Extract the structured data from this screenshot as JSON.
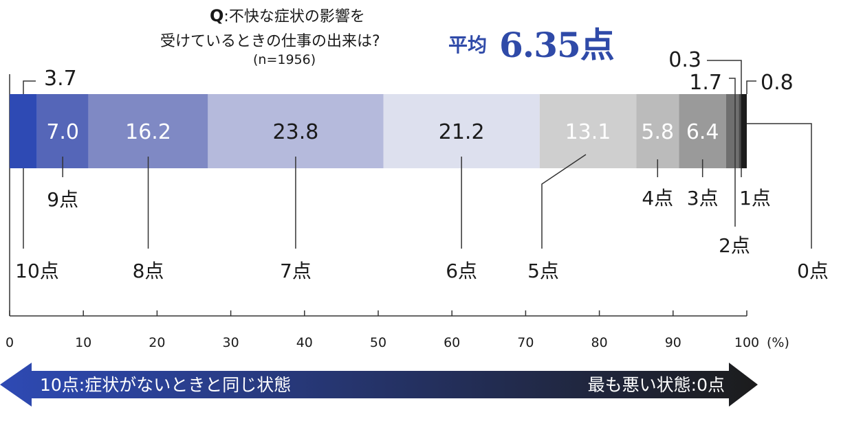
{
  "question": {
    "prefix": "Q",
    "line1": ":不快な症状の影響を",
    "line2": "受けているときの仕事の出来は?",
    "sample": "(n=1956)"
  },
  "average": {
    "label": "平均",
    "value": "6.35点"
  },
  "chart_data": {
    "type": "stacked-bar-100",
    "categories": [
      "10点",
      "9点",
      "8点",
      "7点",
      "6点",
      "5点",
      "4点",
      "3点",
      "2点",
      "1点",
      "0点"
    ],
    "values": [
      3.7,
      7.0,
      16.2,
      23.8,
      21.2,
      13.1,
      5.8,
      6.4,
      1.7,
      0.3,
      0.8
    ],
    "value_labels": [
      "3.7",
      "7.0",
      "16.2",
      "23.8",
      "21.2",
      "13.1",
      "5.8",
      "6.4",
      "1.7",
      "0.3",
      "0.8"
    ],
    "colors": [
      "#2e4ab4",
      "#5566b8",
      "#7f89c4",
      "#b5badc",
      "#dde0ee",
      "#cfcfcf",
      "#bbbbbb",
      "#9a9a9a",
      "#6f6f6f",
      "#4a4a4a",
      "#1c1c1c"
    ],
    "label_colors": [
      "#1a1a1a",
      "#ffffff",
      "#ffffff",
      "#1a1a1a",
      "#1a1a1a",
      "#ffffff",
      "#ffffff",
      "#ffffff",
      "#1a1a1a",
      "#1a1a1a",
      "#1a1a1a"
    ],
    "xlim": [
      0,
      100
    ],
    "xticks": [
      "0",
      "10",
      "20",
      "30",
      "40",
      "50",
      "60",
      "70",
      "80",
      "90",
      "100"
    ],
    "xunit": "(%)"
  },
  "arrow": {
    "left_label": "10点:症状がないときと同じ状態",
    "right_label": "最も悪い状態:0点",
    "color_start": "#2e4ab4",
    "color_end": "#1c1c1c"
  }
}
